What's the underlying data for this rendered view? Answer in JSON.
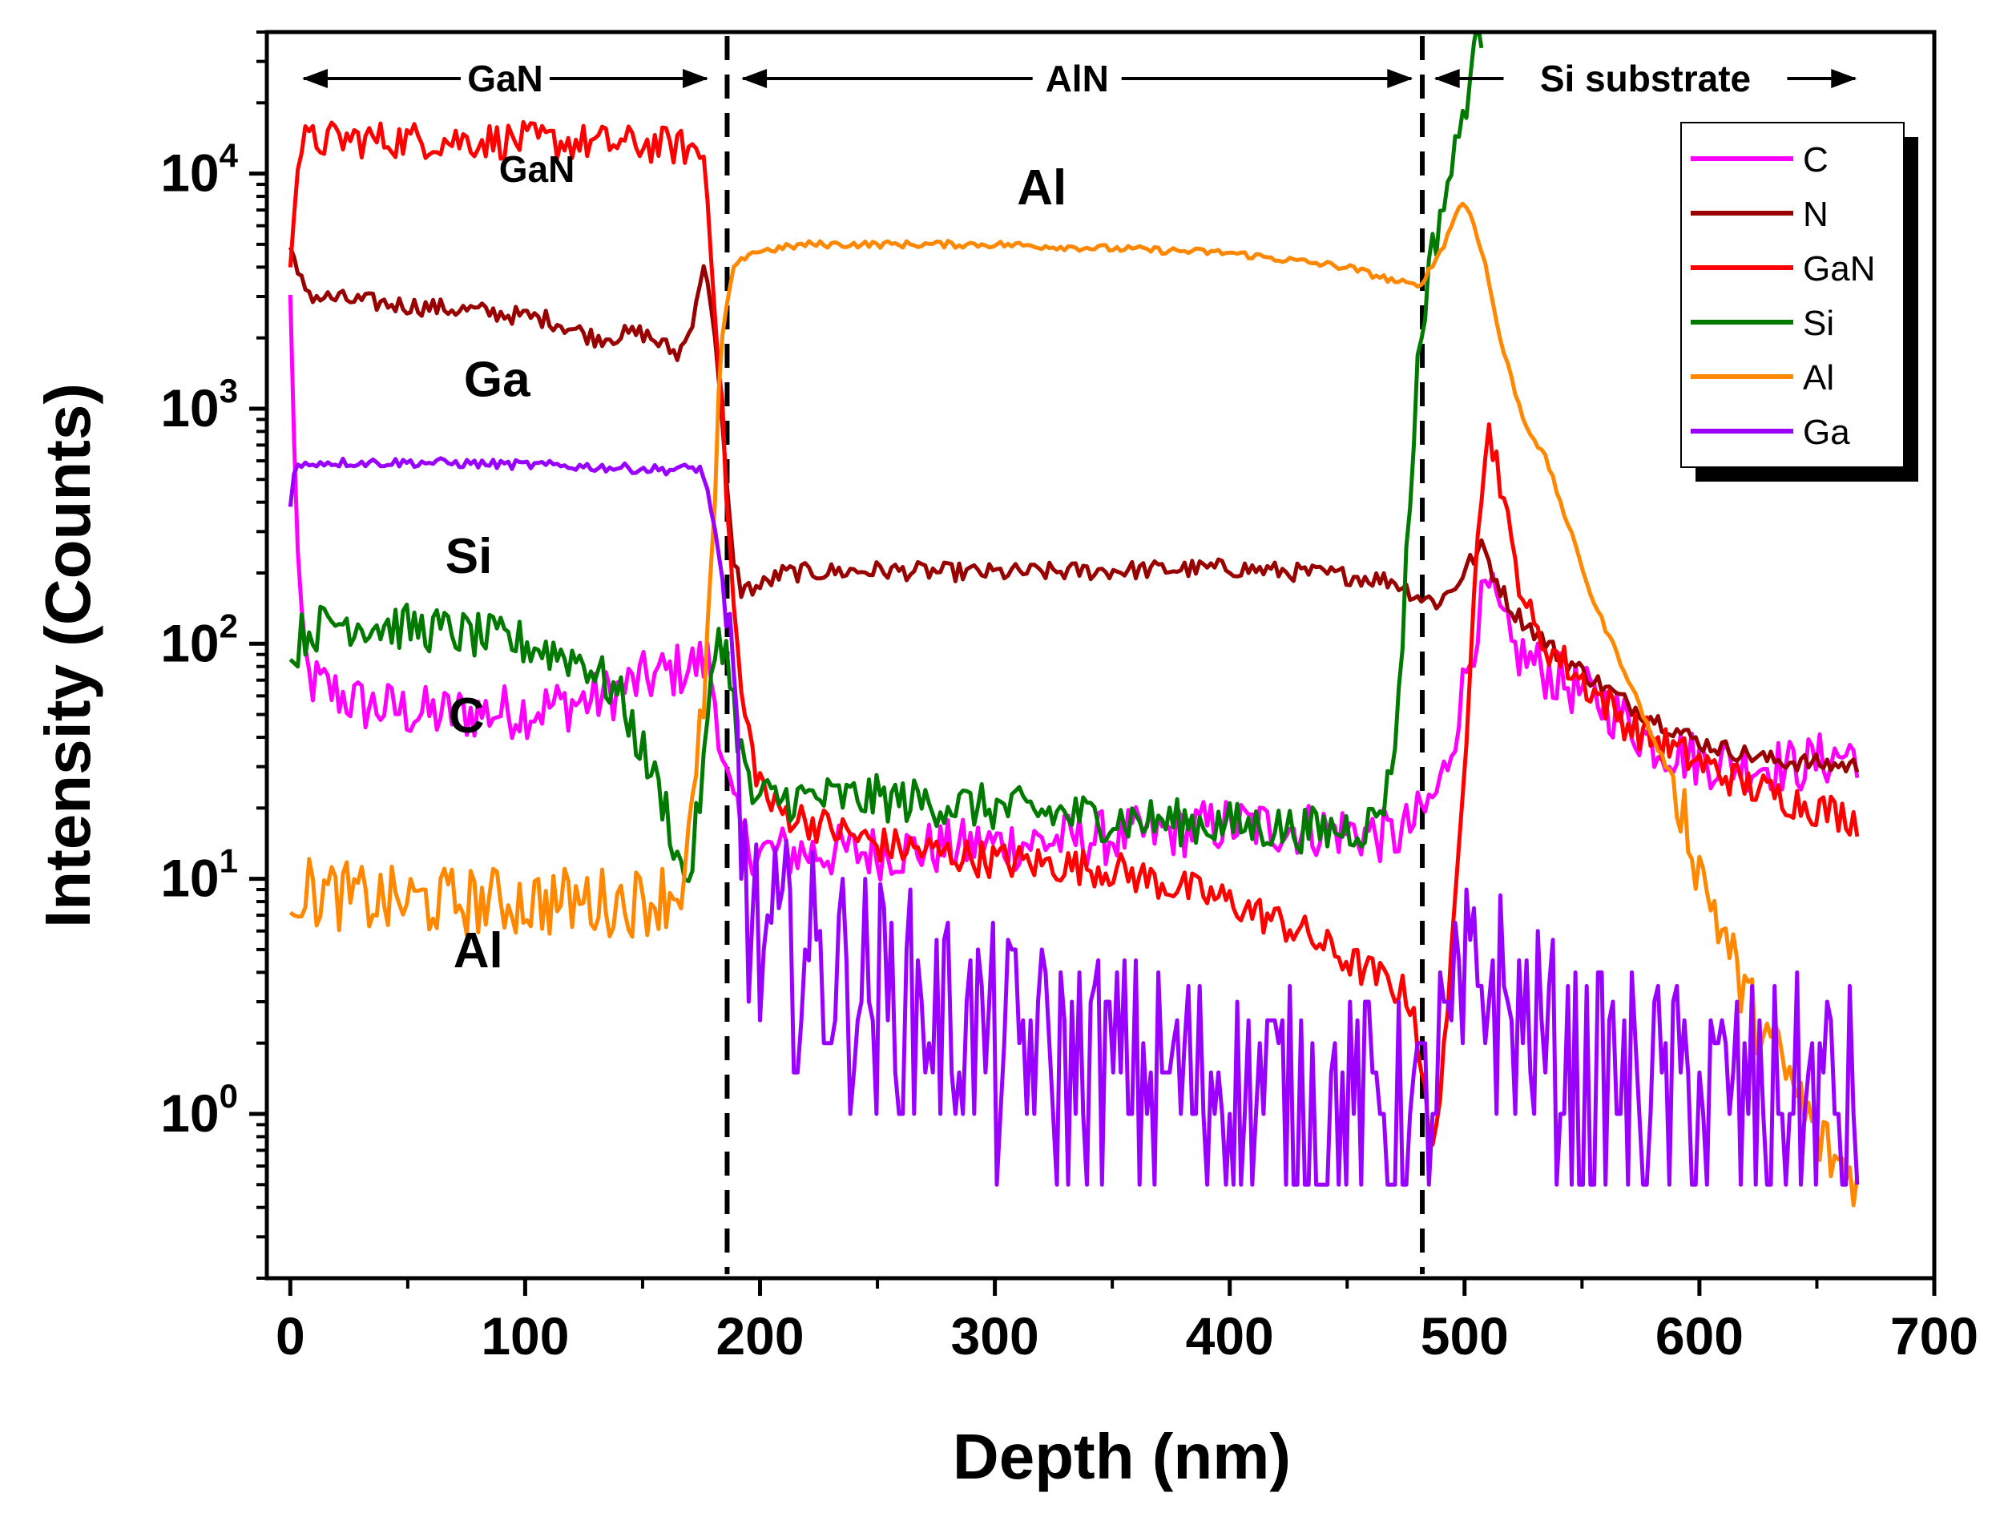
{
  "chart_data": {
    "type": "line",
    "xlabel": "Depth (nm)",
    "ylabel": "Intensity (Counts)",
    "xlim": [
      -10,
      700
    ],
    "ylim": [
      0.2,
      40000
    ],
    "yscale": "log",
    "xticks": [
      0,
      100,
      200,
      300,
      400,
      500,
      600,
      700
    ],
    "yticks": [
      {
        "value": 1,
        "base": "10",
        "exp": "0"
      },
      {
        "value": 10,
        "base": "10",
        "exp": "1"
      },
      {
        "value": 100,
        "base": "10",
        "exp": "2"
      },
      {
        "value": 1000,
        "base": "10",
        "exp": "3"
      },
      {
        "value": 10000,
        "base": "10",
        "exp": "4"
      }
    ],
    "interfaces": [
      186,
      482
    ],
    "regions": [
      {
        "label": "GaN",
        "from": 5,
        "to": 178
      },
      {
        "label": "AlN",
        "from": 192,
        "to": 478
      },
      {
        "label": "Si substrate",
        "from": 487,
        "to": 667
      }
    ],
    "annotations": [
      {
        "text": "GaN",
        "x": 105,
        "y": 9200,
        "size": "small"
      },
      {
        "text": "Al",
        "x": 320,
        "y": 7400,
        "size": "large"
      },
      {
        "text": "Ga",
        "x": 88,
        "y": 1130,
        "size": "large"
      },
      {
        "text": "Si",
        "x": 76,
        "y": 200,
        "size": "large"
      },
      {
        "text": "C",
        "x": 75,
        "y": 42,
        "size": "large"
      },
      {
        "text": "Al",
        "x": 80,
        "y": 4.2,
        "size": "large"
      }
    ],
    "legend_position": "top-right",
    "series": [
      {
        "name": "C",
        "color": "#ff00ff",
        "noise": 0.12,
        "points": [
          [
            0,
            2800
          ],
          [
            2,
            600
          ],
          [
            4,
            120
          ],
          [
            8,
            70
          ],
          [
            30,
            55
          ],
          [
            60,
            50
          ],
          [
            100,
            52
          ],
          [
            130,
            58
          ],
          [
            150,
            70
          ],
          [
            170,
            80
          ],
          [
            178,
            85
          ],
          [
            182,
            50
          ],
          [
            186,
            25
          ],
          [
            192,
            15
          ],
          [
            200,
            13
          ],
          [
            250,
            13
          ],
          [
            300,
            14
          ],
          [
            350,
            15
          ],
          [
            400,
            17
          ],
          [
            450,
            16
          ],
          [
            470,
            15
          ],
          [
            478,
            17
          ],
          [
            484,
            20
          ],
          [
            490,
            25
          ],
          [
            495,
            40
          ],
          [
            500,
            70
          ],
          [
            506,
            130
          ],
          [
            510,
            170
          ],
          [
            515,
            130
          ],
          [
            520,
            95
          ],
          [
            540,
            70
          ],
          [
            560,
            55
          ],
          [
            580,
            38
          ],
          [
            600,
            32
          ],
          [
            640,
            30
          ],
          [
            668,
            35
          ]
        ]
      },
      {
        "name": "N",
        "color": "#990000",
        "noise": 0.04,
        "points": [
          [
            0,
            4800
          ],
          [
            3,
            3600
          ],
          [
            10,
            3000
          ],
          [
            40,
            2800
          ],
          [
            80,
            2600
          ],
          [
            110,
            2400
          ],
          [
            130,
            2000
          ],
          [
            150,
            2100
          ],
          [
            165,
            1700
          ],
          [
            170,
            2100
          ],
          [
            174,
            3400
          ],
          [
            177,
            4000
          ],
          [
            180,
            2500
          ],
          [
            184,
            800
          ],
          [
            188,
            250
          ],
          [
            192,
            170
          ],
          [
            200,
            175
          ],
          [
            210,
            200
          ],
          [
            250,
            205
          ],
          [
            300,
            200
          ],
          [
            350,
            205
          ],
          [
            400,
            210
          ],
          [
            450,
            195
          ],
          [
            470,
            185
          ],
          [
            480,
            160
          ],
          [
            488,
            150
          ],
          [
            495,
            170
          ],
          [
            502,
            220
          ],
          [
            508,
            260
          ],
          [
            512,
            200
          ],
          [
            520,
            140
          ],
          [
            540,
            90
          ],
          [
            570,
            55
          ],
          [
            600,
            38
          ],
          [
            630,
            32
          ],
          [
            668,
            30
          ]
        ]
      },
      {
        "name": "GaN",
        "color": "#ff0000",
        "noise": 0.08,
        "points": [
          [
            0,
            4500
          ],
          [
            2,
            9000
          ],
          [
            5,
            13500
          ],
          [
            20,
            14000
          ],
          [
            100,
            13800
          ],
          [
            160,
            13200
          ],
          [
            170,
            12800
          ],
          [
            176,
            12000
          ],
          [
            180,
            4000
          ],
          [
            184,
            900
          ],
          [
            188,
            180
          ],
          [
            192,
            60
          ],
          [
            198,
            30
          ],
          [
            205,
            20
          ],
          [
            250,
            14
          ],
          [
            300,
            12
          ],
          [
            350,
            11
          ],
          [
            400,
            8
          ],
          [
            430,
            6
          ],
          [
            450,
            4.5
          ],
          [
            470,
            3.5
          ],
          [
            478,
            3
          ],
          [
            482,
            1.5
          ],
          [
            486,
            0.6
          ],
          [
            490,
            1.5
          ],
          [
            495,
            5
          ],
          [
            500,
            30
          ],
          [
            505,
            300
          ],
          [
            510,
            800
          ],
          [
            514,
            600
          ],
          [
            520,
            250
          ],
          [
            530,
            110
          ],
          [
            550,
            70
          ],
          [
            570,
            45
          ],
          [
            590,
            35
          ],
          [
            620,
            25
          ],
          [
            650,
            20
          ],
          [
            668,
            18
          ]
        ]
      },
      {
        "name": "Si",
        "color": "#007a00",
        "noise": 0.1,
        "points": [
          [
            0,
            80
          ],
          [
            5,
            110
          ],
          [
            20,
            125
          ],
          [
            60,
            115
          ],
          [
            100,
            100
          ],
          [
            125,
            85
          ],
          [
            140,
            60
          ],
          [
            150,
            35
          ],
          [
            160,
            20
          ],
          [
            166,
            11
          ],
          [
            170,
            10
          ],
          [
            176,
            30
          ],
          [
            182,
            120
          ],
          [
            186,
            90
          ],
          [
            190,
            45
          ],
          [
            196,
            22
          ],
          [
            205,
            22
          ],
          [
            250,
            22
          ],
          [
            300,
            20
          ],
          [
            350,
            18
          ],
          [
            400,
            17
          ],
          [
            440,
            16
          ],
          [
            460,
            17
          ],
          [
            468,
            25
          ],
          [
            472,
            60
          ],
          [
            476,
            300
          ],
          [
            480,
            1500
          ],
          [
            484,
            3500
          ],
          [
            490,
            7000
          ],
          [
            496,
            12000
          ],
          [
            502,
            25000
          ],
          [
            508,
            45000
          ]
        ]
      },
      {
        "name": "Al",
        "color": "#ff8800",
        "noise": 0.15,
        "smooth_from": 184,
        "points": [
          [
            0,
            9
          ],
          [
            40,
            8
          ],
          [
            80,
            8
          ],
          [
            120,
            8
          ],
          [
            150,
            8
          ],
          [
            166,
            9
          ],
          [
            172,
            20
          ],
          [
            176,
            60
          ],
          [
            180,
            250
          ],
          [
            184,
            2000
          ],
          [
            188,
            3800
          ],
          [
            195,
            4600
          ],
          [
            220,
            5000
          ],
          [
            300,
            5000
          ],
          [
            350,
            4800
          ],
          [
            400,
            4600
          ],
          [
            450,
            4000
          ],
          [
            470,
            3500
          ],
          [
            480,
            3300
          ],
          [
            486,
            4000
          ],
          [
            492,
            5200
          ],
          [
            498,
            7500
          ],
          [
            502,
            7000
          ],
          [
            508,
            4500
          ],
          [
            515,
            2000
          ],
          [
            525,
            900
          ],
          [
            535,
            600
          ],
          [
            545,
            300
          ],
          [
            555,
            150
          ],
          [
            570,
            70
          ],
          [
            580,
            40
          ],
          [
            590,
            25
          ],
          [
            600,
            11
          ],
          [
            610,
            6
          ],
          [
            620,
            3
          ],
          [
            630,
            2
          ],
          [
            640,
            1.3
          ],
          [
            650,
            0.8
          ],
          [
            660,
            0.6
          ],
          [
            668,
            0.5
          ]
        ]
      },
      {
        "name": "Ga",
        "color": "#9900ff",
        "noise": 0.5,
        "smooth_before": 186,
        "points": [
          [
            0,
            400
          ],
          [
            2,
            560
          ],
          [
            10,
            590
          ],
          [
            60,
            590
          ],
          [
            120,
            570
          ],
          [
            160,
            550
          ],
          [
            175,
            560
          ],
          [
            180,
            350
          ],
          [
            184,
            180
          ],
          [
            188,
            60
          ],
          [
            192,
            15
          ],
          [
            198,
            5
          ],
          [
            220,
            4.5
          ],
          [
            260,
            3
          ],
          [
            300,
            2
          ],
          [
            350,
            1.6
          ],
          [
            400,
            1.3
          ],
          [
            450,
            1.1
          ],
          [
            480,
            0.9
          ],
          [
            500,
            3
          ],
          [
            510,
            4
          ],
          [
            520,
            2.5
          ],
          [
            550,
            1.4
          ],
          [
            600,
            1.2
          ],
          [
            668,
            1.2
          ]
        ]
      }
    ]
  }
}
